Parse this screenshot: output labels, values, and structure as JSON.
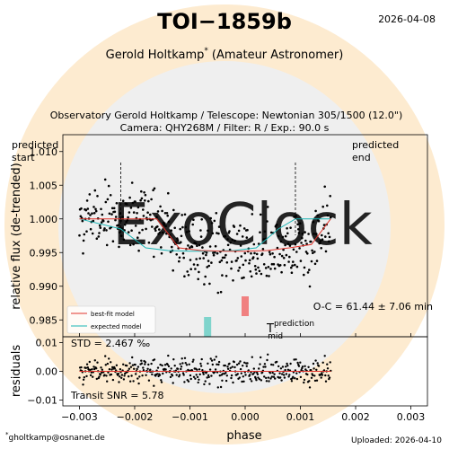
{
  "header": {
    "title": "TOI−1859b",
    "date": "2026-04-08",
    "observer": "Gerold Holtkamp",
    "observer_mark": "*",
    "observer_role": "(Amateur Astronomer)",
    "setup_line1": "Observatory Gerold Holtkamp / Telescope: Newtonian 305/1500 (12.0\")",
    "setup_line2": "Camera: QHY268M / Filter: R / Exp.: 90.0 s"
  },
  "footer": {
    "email_mark": "*",
    "email": "gholtkamp@osnanet.de",
    "uploaded": "Uploaded: 2026-04-10"
  },
  "annotations": {
    "predicted_start": [
      "predicted",
      "start"
    ],
    "predicted_end": [
      "predicted",
      "end"
    ],
    "oc": "O-C = 61.44 ± 7.06 min",
    "tmid": "T",
    "tmid_sup": "prediction",
    "tmid_sub": "mid",
    "std": "STD = 2.467 ‰",
    "snr": "Transit SNR = 5.78"
  },
  "legend": {
    "fit_label": "best-fit model",
    "expected_label": "expected model"
  },
  "watermark": {
    "text": "ExoClock"
  },
  "colors": {
    "points": "#000000",
    "fit": "#e0332b",
    "expected": "#1ab4b4",
    "marker_observed": "#f08080",
    "marker_predicted": "#7fd4cc",
    "watermark_circle": "#fdebd0",
    "watermark_inner": "#efefef"
  },
  "chart_data": [
    {
      "type": "scatter",
      "xlabel": "phase",
      "ylabel": "relative flux (de-trended)",
      "xlim": [
        -0.0033,
        0.0033
      ],
      "ylim": [
        0.9825,
        1.0125
      ],
      "xticks": [
        -0.003,
        -0.002,
        -0.001,
        0.0,
        0.001,
        0.002,
        0.003
      ],
      "xtick_labels": [
        "−0.003",
        "−0.002",
        "−0.001",
        "0.000",
        "0.001",
        "0.002",
        "0.003"
      ],
      "yticks": [
        0.985,
        0.99,
        0.995,
        1.0,
        1.005,
        1.01
      ],
      "ytick_labels": [
        "0.985",
        "0.990",
        "0.995",
        "1.000",
        "1.005",
        "1.010"
      ],
      "data_range": [
        -0.003,
        0.00155
      ],
      "predicted_start": -0.00225,
      "predicted_end": 0.00091,
      "tmid_predicted": -0.00068,
      "tmid_observed": 0.0,
      "series": [
        {
          "name": "best-fit model",
          "x": [
            -0.003,
            -0.0016,
            -0.0012,
            -0.0008,
            -0.0004,
            0.0,
            0.0004,
            0.0008,
            0.0012,
            0.00155
          ],
          "y": [
            1.0,
            1.0,
            0.9957,
            0.9953,
            0.9952,
            0.9952,
            0.9953,
            0.9957,
            0.9962,
            1.0
          ]
        },
        {
          "name": "expected model",
          "x": [
            -0.003,
            -0.00225,
            -0.0018,
            -0.0014,
            -0.001,
            -0.0006,
            -0.0002,
            0.0002,
            0.0006,
            0.00091,
            0.00155
          ],
          "y": [
            1.0,
            0.9985,
            0.9957,
            0.9953,
            0.9952,
            0.9952,
            0.9953,
            0.9957,
            0.9985,
            1.0,
            1.0
          ]
        }
      ],
      "points": {
        "count": 420,
        "noise_sigma": 0.0025,
        "note": "observed de-trended flux values scattered around the best-fit model"
      }
    },
    {
      "type": "scatter",
      "xlabel": "phase",
      "ylabel": "residuals",
      "xlim": [
        -0.0033,
        0.0033
      ],
      "ylim": [
        -0.012,
        0.012
      ],
      "yticks": [
        -0.01,
        0.0,
        0.01
      ],
      "ytick_labels": [
        "−0.01",
        "0.00",
        "0.01"
      ],
      "zero_line": 0.0
    }
  ]
}
